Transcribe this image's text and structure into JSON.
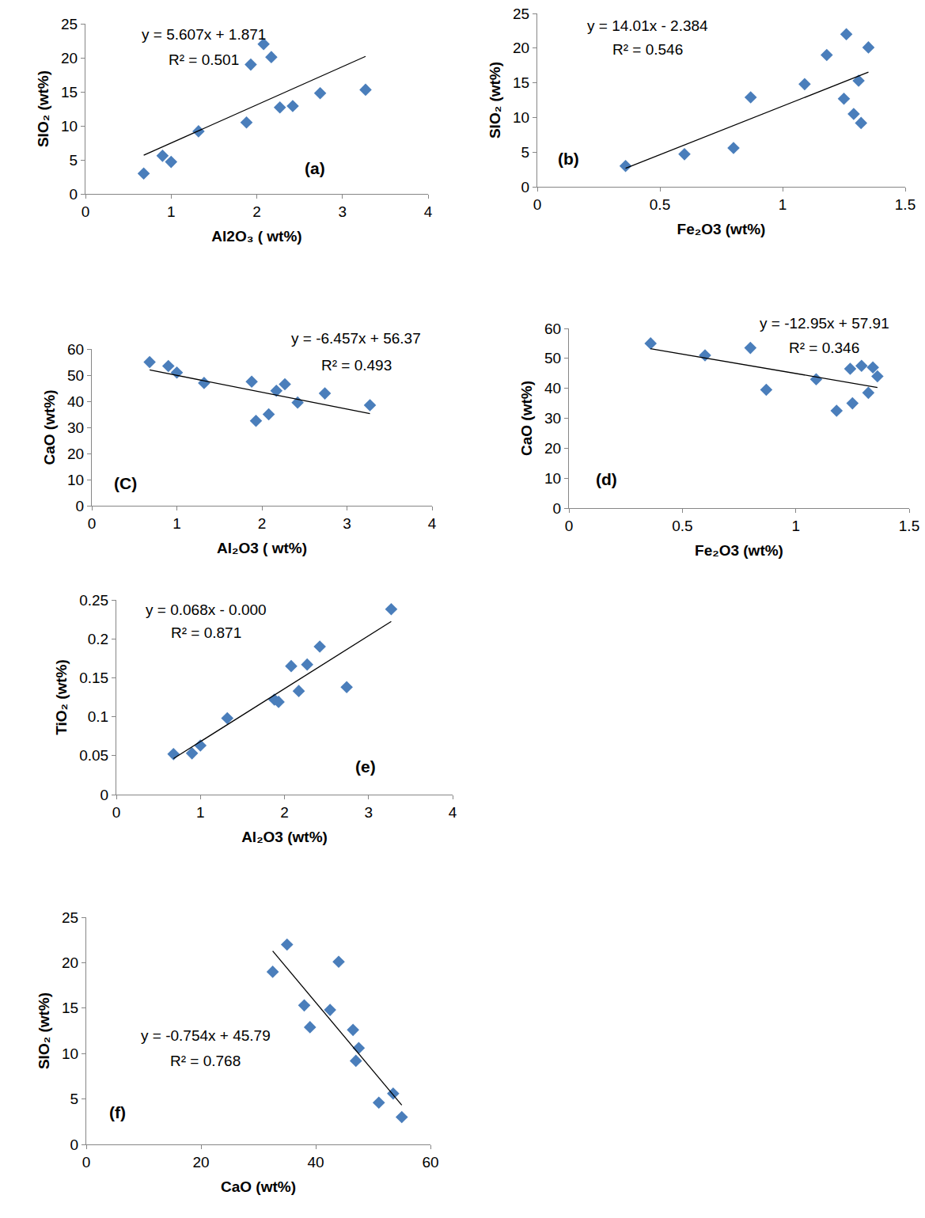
{
  "chart_data": [
    {
      "type": "scatter",
      "x_label": "Al2O₃ ( wt%)",
      "y_label": "SIO₂ (wt%)",
      "x": [
        0.68,
        0.9,
        1.0,
        1.32,
        1.88,
        1.93,
        2.08,
        2.17,
        2.27,
        2.42,
        2.74,
        3.27
      ],
      "values": [
        3.0,
        5.6,
        4.7,
        9.2,
        10.5,
        19.0,
        22.0,
        20.1,
        12.7,
        12.9,
        14.8,
        15.3
      ],
      "xlim": [
        0,
        4
      ],
      "xticks": [
        0,
        1,
        2,
        3,
        4
      ],
      "ylim": [
        0,
        25
      ],
      "yticks": [
        0,
        5,
        10,
        15,
        20,
        25
      ],
      "trendline": {
        "slope": 5.607,
        "intercept": 1.871
      },
      "annotations": [
        "y = 5.607x + 1.871",
        "R² = 0.501",
        "(a)"
      ],
      "color": "#4a7ebb",
      "marker": "diamond",
      "grid": false
    },
    {
      "type": "scatter",
      "x_label": "Fe₂O3 (wt%)",
      "y_label": "SIO₂ (wt%)",
      "x": [
        0.36,
        0.6,
        0.8,
        0.87,
        1.09,
        1.18,
        1.26,
        1.25,
        1.29,
        1.31,
        1.32,
        1.35
      ],
      "values": [
        3.0,
        4.7,
        5.6,
        12.9,
        14.8,
        19.0,
        22.0,
        12.7,
        10.5,
        15.3,
        9.2,
        20.1
      ],
      "xlim": [
        0,
        1.5
      ],
      "xticks": [
        0,
        0.5,
        1,
        1.5
      ],
      "ylim": [
        0,
        25
      ],
      "yticks": [
        0,
        5,
        10,
        15,
        20,
        25
      ],
      "trendline": {
        "slope": 14.01,
        "intercept": -2.384
      },
      "annotations": [
        "y = 14.01x - 2.384",
        "R² = 0.546",
        "(b)"
      ],
      "color": "#4a7ebb",
      "marker": "diamond",
      "grid": false
    },
    {
      "type": "scatter",
      "x_label": "Al₂O3 ( wt%)",
      "y_label": "CaO (wt%)",
      "x": [
        0.68,
        0.9,
        1.0,
        1.32,
        1.88,
        1.93,
        2.08,
        2.17,
        2.27,
        2.42,
        2.74,
        3.27
      ],
      "values": [
        55,
        53.5,
        51,
        47,
        47.5,
        32.5,
        35,
        44,
        46.5,
        39.5,
        43,
        38.5
      ],
      "xlim": [
        0,
        4
      ],
      "xticks": [
        0,
        1,
        2,
        3,
        4
      ],
      "ylim": [
        0,
        60
      ],
      "yticks": [
        0,
        10,
        20,
        30,
        40,
        50,
        60
      ],
      "trendline": {
        "slope": -6.457,
        "intercept": 56.37
      },
      "annotations": [
        "y = -6.457x + 56.37",
        "R² = 0.493",
        "(C)"
      ],
      "color": "#4a7ebb",
      "marker": "diamond",
      "grid": false
    },
    {
      "type": "scatter",
      "x_label": "Fe₂O3 (wt%)",
      "y_label": "CaO (wt%)",
      "x": [
        0.36,
        0.6,
        0.8,
        0.87,
        1.09,
        1.18,
        1.25,
        1.24,
        1.29,
        1.32,
        1.34,
        1.36
      ],
      "values": [
        55,
        51,
        53.5,
        39.5,
        43,
        32.5,
        35,
        46.5,
        47.5,
        38.5,
        47,
        44
      ],
      "xlim": [
        0,
        1.5
      ],
      "xticks": [
        0,
        0.5,
        1,
        1.5
      ],
      "ylim": [
        0,
        60
      ],
      "yticks": [
        0,
        10,
        20,
        30,
        40,
        50,
        60
      ],
      "trendline": {
        "slope": -12.95,
        "intercept": 57.91
      },
      "annotations": [
        "y = -12.95x + 57.91",
        "R² = 0.346",
        "(d)"
      ],
      "color": "#4a7ebb",
      "marker": "diamond",
      "grid": false
    },
    {
      "type": "scatter",
      "x_label": "Al₂O3 (wt%)",
      "y_label": "TiO₂ (wt%)",
      "x": [
        0.68,
        0.9,
        1.0,
        1.32,
        1.88,
        1.93,
        2.08,
        2.17,
        2.27,
        2.42,
        2.74,
        3.27
      ],
      "values": [
        0.052,
        0.053,
        0.063,
        0.098,
        0.122,
        0.119,
        0.165,
        0.133,
        0.167,
        0.19,
        0.138,
        0.238
      ],
      "xlim": [
        0,
        4
      ],
      "xticks": [
        0,
        1,
        2,
        3,
        4
      ],
      "ylim": [
        0,
        0.25
      ],
      "yticks": [
        0,
        0.05,
        0.1,
        0.15,
        0.2,
        0.25
      ],
      "trendline": {
        "slope": 0.068,
        "intercept": 0
      },
      "annotations": [
        "y = 0.068x - 0.000",
        "R² = 0.871",
        "(e)"
      ],
      "color": "#4a7ebb",
      "marker": "diamond",
      "grid": false
    },
    {
      "type": "scatter",
      "x_label": "CaO (wt%)",
      "y_label": "SIO₂ (wt%)",
      "x": [
        32.5,
        35,
        38,
        39,
        42.5,
        44,
        46.5,
        47.5,
        47,
        51,
        53.5,
        55
      ],
      "values": [
        19.0,
        22.0,
        15.3,
        12.9,
        14.8,
        20.1,
        12.6,
        10.6,
        9.2,
        4.6,
        5.6,
        3.0
      ],
      "xlim": [
        0,
        60
      ],
      "xticks": [
        0,
        20,
        40,
        60
      ],
      "ylim": [
        0,
        25
      ],
      "yticks": [
        0,
        5,
        10,
        15,
        20,
        25
      ],
      "trendline": {
        "slope": -0.754,
        "intercept": 45.79
      },
      "annotations": [
        "y = -0.754x + 45.79",
        "R² = 0.768",
        "(f)"
      ],
      "color": "#4a7ebb",
      "marker": "diamond",
      "grid": false
    }
  ]
}
